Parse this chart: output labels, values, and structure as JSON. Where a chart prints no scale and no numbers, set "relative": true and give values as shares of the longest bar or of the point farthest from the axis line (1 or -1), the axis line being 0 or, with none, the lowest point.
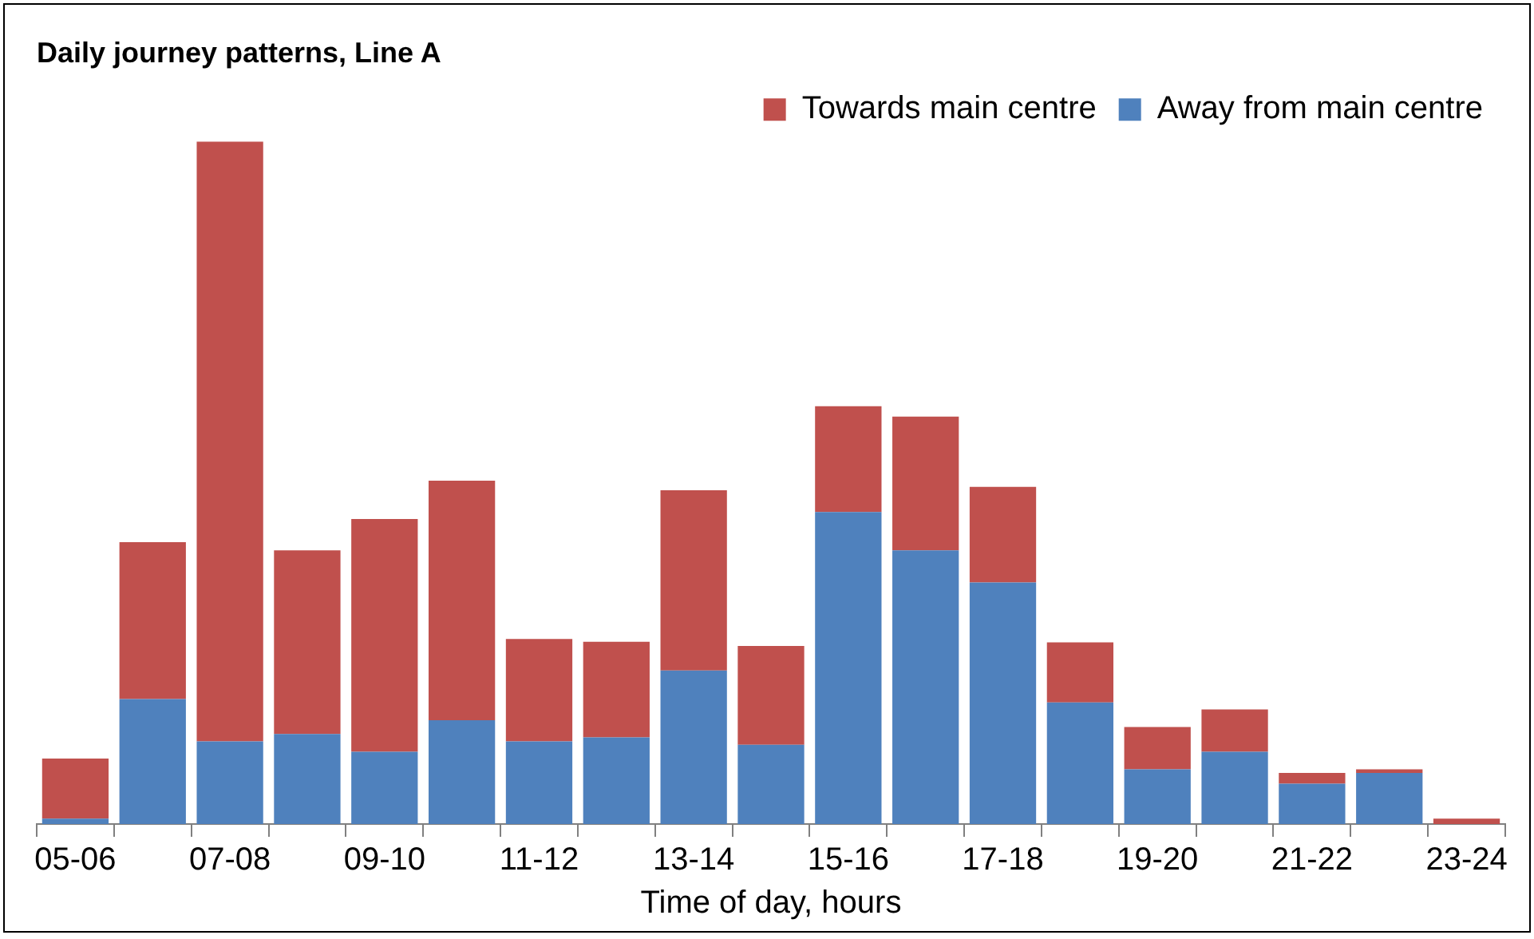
{
  "chart_data": {
    "type": "bar",
    "title": "Daily journey patterns, Line A",
    "xlabel": "Time of day, hours",
    "stacked": true,
    "relative": true,
    "legend": "top right",
    "grid": false,
    "categories": [
      "05-06",
      null,
      "07-08",
      null,
      "09-10",
      null,
      "11-12",
      null,
      "13-14",
      null,
      "15-16",
      null,
      "17-18",
      null,
      "19-20",
      null,
      "21-22",
      null,
      "23-24"
    ],
    "series": [
      {
        "name": "Away from main centre",
        "color": "#4f81bd",
        "values": [
          0.008,
          0.183,
          0.121,
          0.132,
          0.106,
          0.152,
          0.121,
          0.127,
          0.225,
          0.116,
          0.457,
          0.401,
          0.354,
          0.178,
          0.08,
          0.106,
          0.059,
          0.075,
          0
        ]
      },
      {
        "name": "Towards main centre",
        "color": "#c0504d",
        "values": [
          0.088,
          0.23,
          0.879,
          0.269,
          0.341,
          0.351,
          0.15,
          0.14,
          0.264,
          0.145,
          0.155,
          0.196,
          0.14,
          0.088,
          0.062,
          0.062,
          0.016,
          0.005,
          0.008
        ]
      }
    ]
  }
}
